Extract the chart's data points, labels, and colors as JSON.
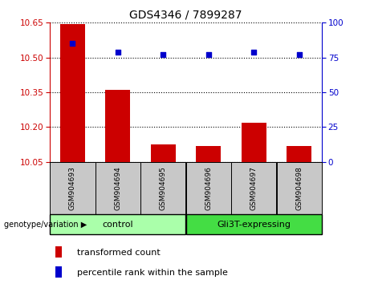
{
  "title": "GDS4346 / 7899287",
  "samples": [
    "GSM904693",
    "GSM904694",
    "GSM904695",
    "GSM904696",
    "GSM904697",
    "GSM904698"
  ],
  "transformed_counts": [
    10.645,
    10.36,
    10.125,
    10.12,
    10.22,
    10.12
  ],
  "percentile_ranks": [
    85,
    79,
    77,
    77,
    79,
    77
  ],
  "ylim_left": [
    10.05,
    10.65
  ],
  "ylim_right": [
    0,
    100
  ],
  "yticks_left": [
    10.05,
    10.2,
    10.35,
    10.5,
    10.65
  ],
  "yticks_right": [
    0,
    25,
    50,
    75,
    100
  ],
  "bar_color": "#cc0000",
  "marker_color": "#0000cc",
  "bar_width": 0.55,
  "groups": [
    {
      "label": "control",
      "indices": [
        0,
        1,
        2
      ],
      "color": "#aaffaa"
    },
    {
      "label": "Gli3T-expressing",
      "indices": [
        3,
        4,
        5
      ],
      "color": "#44dd44"
    }
  ],
  "group_label_prefix": "genotype/variation",
  "legend_bar_label": "transformed count",
  "legend_marker_label": "percentile rank within the sample",
  "tick_color_left": "#cc0000",
  "tick_color_right": "#0000cc",
  "xlabel_bg_color": "#c8c8c8"
}
